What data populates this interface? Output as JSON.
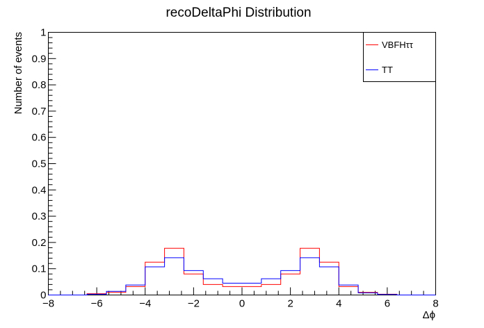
{
  "chart_data": {
    "type": "line",
    "title": "recoDeltaPhi Distribution",
    "xlabel": "Δϕ",
    "ylabel": "Number of events",
    "xlim": [
      -8,
      8
    ],
    "ylim": [
      0,
      1
    ],
    "x_ticks": [
      -8,
      -6,
      -4,
      -2,
      0,
      2,
      4,
      6,
      8
    ],
    "y_ticks": [
      0,
      0.1,
      0.2,
      0.3,
      0.4,
      0.5,
      0.6,
      0.7,
      0.8,
      0.9,
      1
    ],
    "x_tick_labels": [
      "−8",
      "−6",
      "−4",
      "−2",
      "0",
      "2",
      "4",
      "6",
      "8"
    ],
    "y_tick_labels": [
      "0",
      "0.1",
      "0.2",
      "0.3",
      "0.4",
      "0.5",
      "0.6",
      "0.7",
      "0.8",
      "0.9",
      "1"
    ],
    "bin_edges": [
      -8,
      -7.2,
      -6.4,
      -5.6,
      -4.8,
      -4.0,
      -3.2,
      -2.4,
      -1.6,
      -0.8,
      0,
      0.8,
      1.6,
      2.4,
      3.2,
      4.0,
      4.8,
      5.6,
      6.4,
      7.2,
      8
    ],
    "series": [
      {
        "name": "VBFHττ",
        "color": "#ff0000",
        "values": [
          0,
          0,
          0.005,
          0.01,
          0.032,
          0.125,
          0.178,
          0.08,
          0.04,
          0.032,
          0.032,
          0.04,
          0.08,
          0.178,
          0.125,
          0.032,
          0.01,
          0.003,
          0,
          0
        ]
      },
      {
        "name": "TT",
        "color": "#0000ff",
        "values": [
          0,
          0,
          0.003,
          0.014,
          0.038,
          0.107,
          0.142,
          0.093,
          0.062,
          0.045,
          0.045,
          0.062,
          0.093,
          0.142,
          0.107,
          0.038,
          0.008,
          0.002,
          0,
          0
        ]
      }
    ],
    "legend_position": "top-right",
    "grid": false
  }
}
